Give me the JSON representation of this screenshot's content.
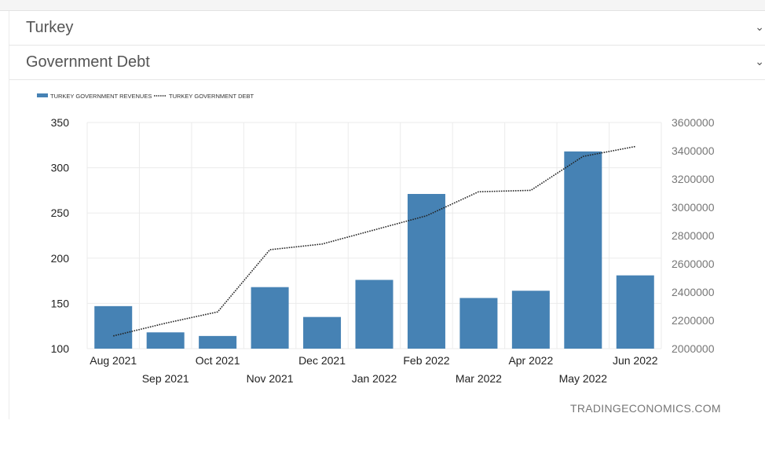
{
  "panels": {
    "country": "Turkey",
    "indicator": "Government Debt"
  },
  "watermark": "TRADINGECONOMICS.COM",
  "colors": {
    "bar": "#4682b4",
    "debt_line": "#222222",
    "grid": "#ebebeb"
  },
  "chart_data": {
    "type": "bar",
    "categories": [
      "Aug 2021",
      "Sep 2021",
      "Oct 2021",
      "Nov 2021",
      "Dec 2021",
      "Jan 2022",
      "Feb 2022",
      "Mar 2022",
      "Apr 2022",
      "May 2022",
      "Jun 2022"
    ],
    "series": [
      {
        "name": "TURKEY GOVERNMENT REVENUES",
        "type": "bar",
        "axis": "left",
        "values": [
          147,
          118,
          114,
          168,
          135,
          176,
          271,
          156,
          164,
          318,
          181
        ]
      },
      {
        "name": "TURKEY GOVERNMENT DEBT",
        "type": "line",
        "style": "dotted",
        "axis": "right",
        "values": [
          2090000,
          2180000,
          2260000,
          2700000,
          2740000,
          2840000,
          2940000,
          3110000,
          3120000,
          3360000,
          3430000
        ]
      }
    ],
    "left_axis": {
      "ylim": [
        100,
        350
      ],
      "ticks": [
        "100",
        "150",
        "200",
        "250",
        "300",
        "350"
      ]
    },
    "right_axis": {
      "ylim": [
        2000000,
        3600000
      ],
      "ticks": [
        "2000000",
        "2200000",
        "2400000",
        "2600000",
        "2800000",
        "3000000",
        "3200000",
        "3400000",
        "3600000"
      ]
    },
    "legend_position": "top-left",
    "grid": true
  }
}
